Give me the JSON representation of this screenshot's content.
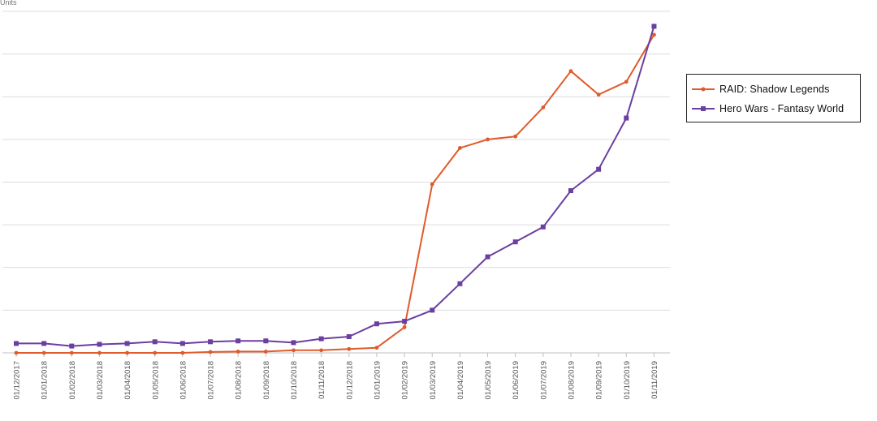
{
  "chart_data": {
    "type": "line",
    "title": "",
    "xlabel": "",
    "ylabel": "Units",
    "ylim": [
      0,
      8
    ],
    "grid": true,
    "legend_position": "right",
    "categories": [
      "01/12/2017",
      "01/01/2018",
      "01/02/2018",
      "01/03/2018",
      "01/04/2018",
      "01/05/2018",
      "01/06/2018",
      "01/07/2018",
      "01/08/2018",
      "01/09/2018",
      "01/10/2018",
      "01/11/2018",
      "01/12/2018",
      "01/01/2019",
      "01/02/2019",
      "01/03/2019",
      "01/04/2019",
      "01/05/2019",
      "01/06/2019",
      "01/07/2019",
      "01/08/2019",
      "01/09/2019",
      "01/10/2019",
      "01/11/2019"
    ],
    "series": [
      {
        "name": "RAID: Shadow Legends",
        "color": "#e05a2b",
        "marker": "circle",
        "values": [
          0,
          0,
          0,
          0,
          0,
          0,
          0,
          0.02,
          0.03,
          0.03,
          0.06,
          0.06,
          0.09,
          0.12,
          0.6,
          3.95,
          4.8,
          5,
          5.07,
          5.75,
          6.6,
          6.05,
          6.35,
          7.45
        ]
      },
      {
        "name": "Hero Wars - Fantasy World",
        "color": "#6b3fa0",
        "marker": "square",
        "values": [
          0.22,
          0.22,
          0.16,
          0.2,
          0.22,
          0.26,
          0.22,
          0.26,
          0.28,
          0.28,
          0.24,
          0.33,
          0.38,
          0.68,
          0.74,
          1,
          1.62,
          2.25,
          2.6,
          2.95,
          3.8,
          4.3,
          5.5,
          7.65
        ]
      }
    ]
  }
}
